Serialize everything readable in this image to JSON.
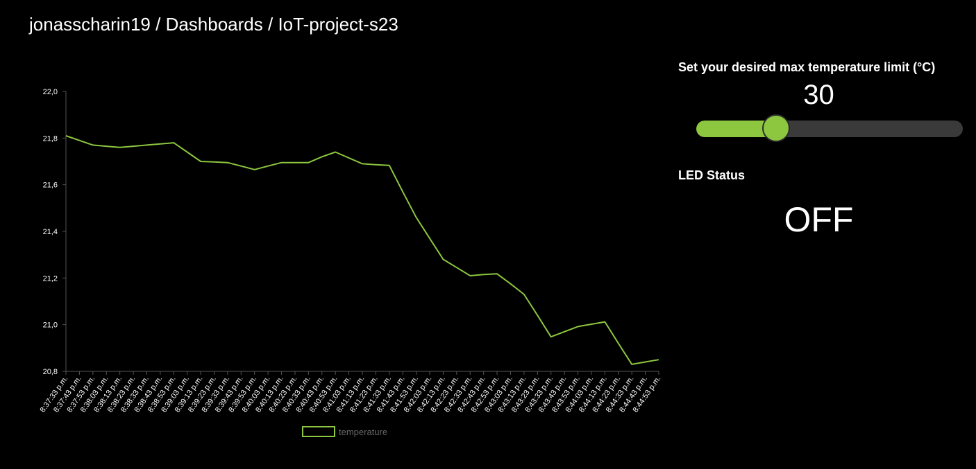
{
  "breadcrumb": {
    "user": "jonasscharin19",
    "sep1": " / ",
    "section": "Dashboards",
    "sep2": " / ",
    "dashboard": "IoT-project-s23"
  },
  "slider": {
    "title": "Set your desired max temperature limit (°C)",
    "value": "30",
    "fraction": 0.3
  },
  "led": {
    "title": "LED Status",
    "status": "OFF"
  },
  "colors": {
    "accent": "#8dc63f",
    "track": "#3a3a3a",
    "background": "#000000"
  },
  "chart_data": {
    "type": "line",
    "x": [
      "8:37:33 p.m.",
      "8:37:43 p.m.",
      "8:37:53 p.m.",
      "8:38:03 p.m.",
      "8:38:13 p.m.",
      "8:38:23 p.m.",
      "8:38:33 p.m.",
      "8:38:43 p.m.",
      "8:38:53 p.m.",
      "8:39:03 p.m.",
      "8:39:13 p.m.",
      "8:39:23 p.m.",
      "8:39:33 p.m.",
      "8:39:43 p.m.",
      "8:39:53 p.m.",
      "8:40:03 p.m.",
      "8:40:13 p.m.",
      "8:40:23 p.m.",
      "8:40:33 p.m.",
      "8:40:43 p.m.",
      "8:40:53 p.m.",
      "8:41:03 p.m.",
      "8:41:13 p.m.",
      "8:41:23 p.m.",
      "8:41:33 p.m.",
      "8:41:43 p.m.",
      "8:41:53 p.m.",
      "8:42:03 p.m.",
      "8:42:13 p.m.",
      "8:42:23 p.m.",
      "8:42:33 p.m.",
      "8:42:43 p.m.",
      "8:42:53 p.m.",
      "8:43:03 p.m.",
      "8:43:13 p.m.",
      "8:43:23 p.m.",
      "8:43:33 p.m.",
      "8:43:43 p.m.",
      "8:43:53 p.m.",
      "8:44:03 p.m.",
      "8:44:13 p.m.",
      "8:44:23 p.m.",
      "8:44:33 p.m.",
      "8:44:43 p.m.",
      "8:44:53 p.m."
    ],
    "series": [
      {
        "name": "temperature",
        "values": [
          21.81,
          21.79,
          21.77,
          21.765,
          21.76,
          21.765,
          21.77,
          21.775,
          21.78,
          21.74,
          21.7,
          21.698,
          21.695,
          21.68,
          21.665,
          21.68,
          21.695,
          21.695,
          21.695,
          21.72,
          21.74,
          21.715,
          21.69,
          21.686,
          21.683,
          21.57,
          21.46,
          21.37,
          21.28,
          21.245,
          21.21,
          21.215,
          21.218,
          21.175,
          21.13,
          21.04,
          20.948,
          20.97,
          20.992,
          21.002,
          21.012,
          20.92,
          20.83,
          20.84,
          20.85
        ]
      }
    ],
    "yticks": [
      "22,0",
      "21,8",
      "21,6",
      "21,4",
      "21,2",
      "21,0",
      "20,8"
    ],
    "ylim": [
      20.8,
      22.0
    ],
    "legend": "temperature",
    "legend_position": "bottom-center",
    "grid": false
  }
}
